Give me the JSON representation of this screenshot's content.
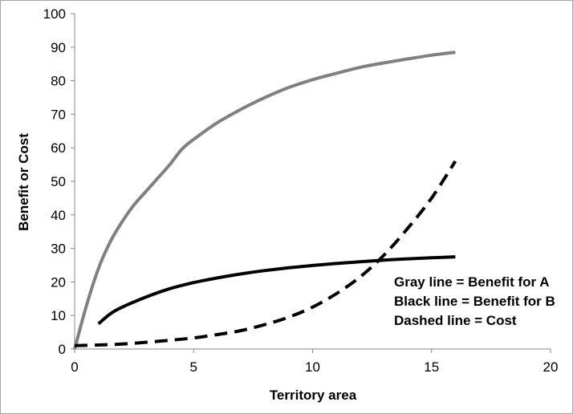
{
  "chart_data": {
    "type": "line",
    "xlabel": "Territory area",
    "ylabel": "Benefit or Cost",
    "xlim": [
      0,
      20
    ],
    "ylim": [
      0,
      100
    ],
    "xticks": [
      0,
      5,
      10,
      15,
      20
    ],
    "yticks": [
      0,
      10,
      20,
      30,
      40,
      50,
      60,
      70,
      80,
      90,
      100
    ],
    "grid": false,
    "legend": "none",
    "annotations": [
      "Gray line = Benefit for A",
      "Black line = Benefit for B",
      "Dashed line = Cost"
    ],
    "series": [
      {
        "color": "#808080",
        "style": "solid",
        "x": [
          0,
          0.5,
          1,
          1.5,
          2,
          2.5,
          3,
          3.5,
          4,
          4.5,
          5,
          6,
          7,
          8,
          9,
          10,
          11,
          12,
          13,
          14,
          15,
          16
        ],
        "y": [
          0,
          13,
          24,
          32,
          38,
          43,
          47,
          51,
          55,
          59.5,
          62.5,
          67.5,
          71.5,
          75,
          78,
          80.3,
          82.2,
          84,
          85.3,
          86.5,
          87.6,
          88.5
        ]
      },
      {
        "color": "#000000",
        "style": "solid",
        "x": [
          1,
          1.5,
          2,
          3,
          4,
          5,
          6,
          7,
          8,
          9,
          10,
          11,
          12,
          13,
          14,
          15,
          16
        ],
        "y": [
          7.5,
          10.5,
          12.5,
          15.5,
          18,
          19.8,
          21.2,
          22.4,
          23.4,
          24.2,
          24.9,
          25.5,
          26,
          26.5,
          26.9,
          27.2,
          27.5
        ]
      },
      {
        "color": "#000000",
        "style": "dashed",
        "x": [
          0,
          1,
          2,
          3,
          4,
          5,
          6,
          7,
          8,
          9,
          10,
          11,
          12,
          13,
          14,
          15,
          16
        ],
        "y": [
          1,
          1.2,
          1.5,
          2,
          2.6,
          3.3,
          4.3,
          5.5,
          7.3,
          9.5,
          12.5,
          16.5,
          21.5,
          28,
          36,
          45,
          56
        ]
      }
    ]
  }
}
